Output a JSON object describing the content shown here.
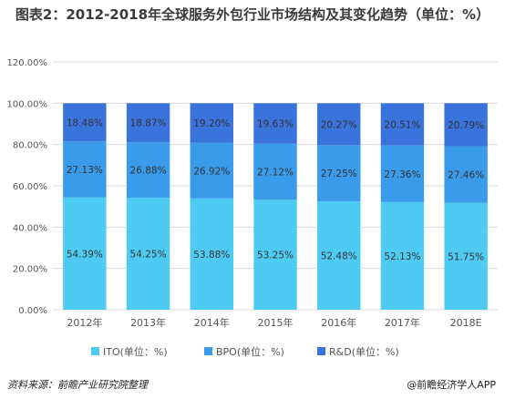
{
  "title": "图表2：2012-2018年全球服务外包行业市场结构及其变化趋势（单位：%）",
  "footer": {
    "source": "资料来源：前瞻产业研究院整理",
    "credit": "@前瞻经济学人APP"
  },
  "colors": {
    "ITO": "#4ecbf3",
    "BPO": "#3a9bea",
    "R&D": "#3a73dc",
    "grid": "#d9d9d9",
    "axis_text": "#555555",
    "bar_text": "#333333"
  },
  "chart_data": {
    "type": "bar",
    "stacked": true,
    "categories": [
      "2012年",
      "2013年",
      "2014年",
      "2015年",
      "2016年",
      "2017年",
      "2018E"
    ],
    "series": [
      {
        "name": "ITO(单位：%)",
        "key": "ITO",
        "values": [
          54.39,
          54.25,
          53.88,
          53.25,
          52.48,
          52.13,
          51.75
        ],
        "labels": [
          "54.39%",
          "54.25%",
          "53.88%",
          "53.25%",
          "52.48%",
          "52.13%",
          "51.75%"
        ]
      },
      {
        "name": "BPO(单位：%)",
        "key": "BPO",
        "values": [
          27.13,
          26.88,
          26.92,
          27.12,
          27.25,
          27.36,
          27.46
        ],
        "labels": [
          "27.13%",
          "26.88%",
          "26.92%",
          "27.12%",
          "27.25%",
          "27.36%",
          "27.46%"
        ]
      },
      {
        "name": "R&D(单位：%)",
        "key": "R&D",
        "values": [
          18.48,
          18.87,
          19.2,
          19.63,
          20.27,
          20.51,
          20.79
        ],
        "labels": [
          "18.48%",
          "18.87%",
          "19.20%",
          "19.63%",
          "20.27%",
          "20.51%",
          "20.79%"
        ]
      }
    ],
    "yticks": [
      "0.00%",
      "20.00%",
      "40.00%",
      "60.00%",
      "80.00%",
      "100.00%",
      "120.00%"
    ],
    "ylim": [
      0,
      120
    ],
    "grid": true,
    "legend": "bottom"
  }
}
